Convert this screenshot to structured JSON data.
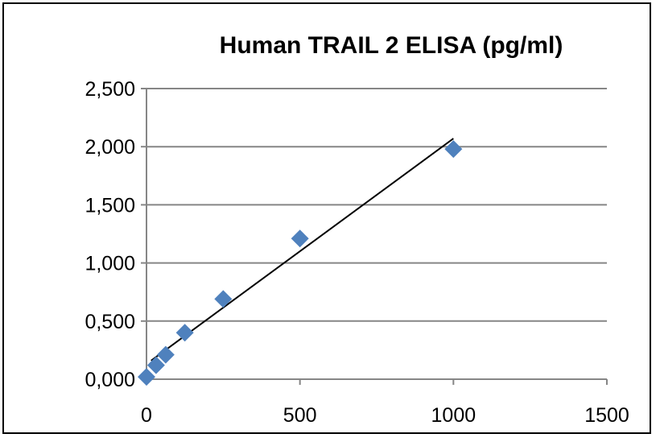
{
  "chart_data": {
    "type": "scatter",
    "title": "Human TRAIL 2 ELISA (pg/ml)",
    "xlabel": "",
    "ylabel": "",
    "xlim": [
      0,
      1500
    ],
    "ylim": [
      0,
      2.5
    ],
    "x_ticks": [
      0,
      500,
      1000,
      1500
    ],
    "x_tick_labels": [
      "0",
      "500",
      "1000",
      "1500"
    ],
    "y_ticks": [
      0,
      0.5,
      1.0,
      1.5,
      2.0,
      2.5
    ],
    "y_tick_labels": [
      "0,000",
      "0,500",
      "1,000",
      "1,500",
      "2,000",
      "2,500"
    ],
    "grid": "horizontal",
    "legend": "none",
    "series": [
      {
        "marker": "diamond",
        "color": "#4F81BD",
        "points": [
          {
            "x": 0,
            "y": 0.02
          },
          {
            "x": 31.25,
            "y": 0.12
          },
          {
            "x": 62.5,
            "y": 0.21
          },
          {
            "x": 125,
            "y": 0.4
          },
          {
            "x": 250,
            "y": 0.69
          },
          {
            "x": 500,
            "y": 1.21
          },
          {
            "x": 1000,
            "y": 1.98
          }
        ]
      }
    ],
    "trendline": {
      "type": "linear",
      "color": "#000000",
      "x": [
        15,
        1000
      ],
      "y": [
        0.16,
        2.07
      ]
    }
  }
}
